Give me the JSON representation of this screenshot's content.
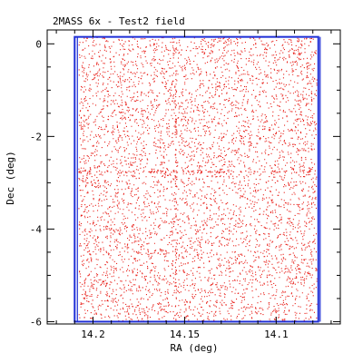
{
  "chart_data": {
    "type": "scatter",
    "title": "2MASS 6x - Test2 field",
    "xlabel": "RA (deg)",
    "ylabel": "Dec (deg)",
    "xlim": [
      14.225,
      14.065
    ],
    "ylim": [
      -6.05,
      0.3
    ],
    "x_inverted": true,
    "xticks": [
      14.2,
      14.15,
      14.1
    ],
    "xtick_labels": [
      "14.2",
      "14.15",
      "14.1"
    ],
    "yticks": [
      0,
      -2,
      -4,
      -6
    ],
    "ytick_labels": [
      "0",
      "-2",
      "-4",
      "-6"
    ],
    "grid": false,
    "series": [
      {
        "color": "#e8201a",
        "marker": "dot",
        "ra_range": [
          14.208,
          14.078
        ],
        "dec_range": [
          -6.0,
          0.15
        ],
        "approx_points": 5200
      }
    ],
    "field_boundary": {
      "color": "#1f2fd6",
      "ra": [
        14.21,
        14.077
      ],
      "dec": [
        -6.0,
        0.15
      ]
    }
  }
}
